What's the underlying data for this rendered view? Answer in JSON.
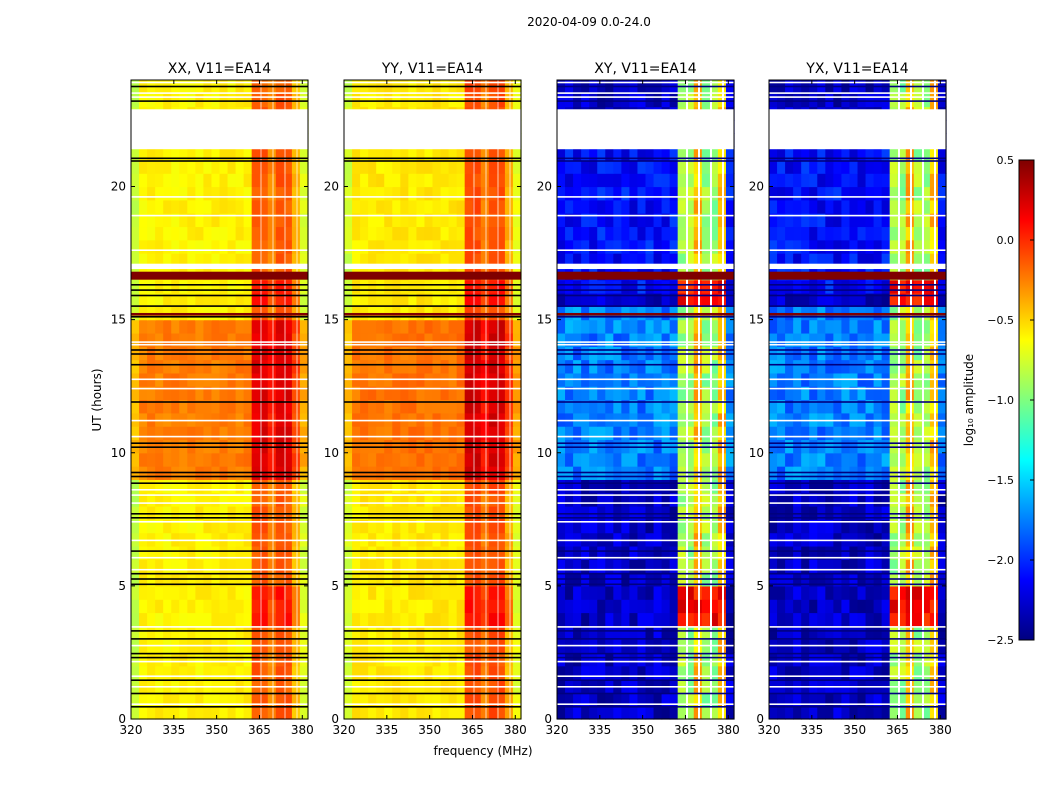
{
  "chart_data": {
    "type": "heatmap",
    "suptitle": "2020-04-09 0.0-24.0",
    "xlabel": "frequency (MHz)",
    "ylabel": "UT (hours)",
    "xlim": [
      320,
      382
    ],
    "ylim": [
      0,
      24
    ],
    "xticks": [
      "320",
      "335",
      "350",
      "365",
      "380"
    ],
    "yticks": [
      "0",
      "5",
      "10",
      "15",
      "20"
    ],
    "panels": [
      {
        "title": "XX, V11=EA14",
        "mode": "auto"
      },
      {
        "title": "YY, V11=EA14",
        "mode": "auto"
      },
      {
        "title": "XY, V11=EA14",
        "mode": "cross"
      },
      {
        "title": "YX, V11=EA14",
        "mode": "cross"
      }
    ],
    "flagged_blank_hours": [
      [
        21.4,
        22.9
      ],
      [
        16.9,
        17.1
      ]
    ],
    "flagged_bright_hours": [
      [
        16.5,
        16.8
      ],
      [
        15.15,
        15.25
      ]
    ],
    "rfi_band_MHz": [
      363,
      380
    ],
    "colorbar": {
      "label": "log₁₀ amplitude",
      "min": -2.5,
      "max": 0.5,
      "ticks": [
        "0.5",
        "0.0",
        "−0.5",
        "−1.0",
        "−1.5",
        "−2.0",
        "−2.5"
      ],
      "colormap": "jet"
    }
  },
  "colors": {
    "jet": [
      "#00007f",
      "#0000ff",
      "#007fff",
      "#00ffff",
      "#7fff7f",
      "#ffff00",
      "#ff7f00",
      "#ff0000",
      "#7f0000"
    ]
  }
}
